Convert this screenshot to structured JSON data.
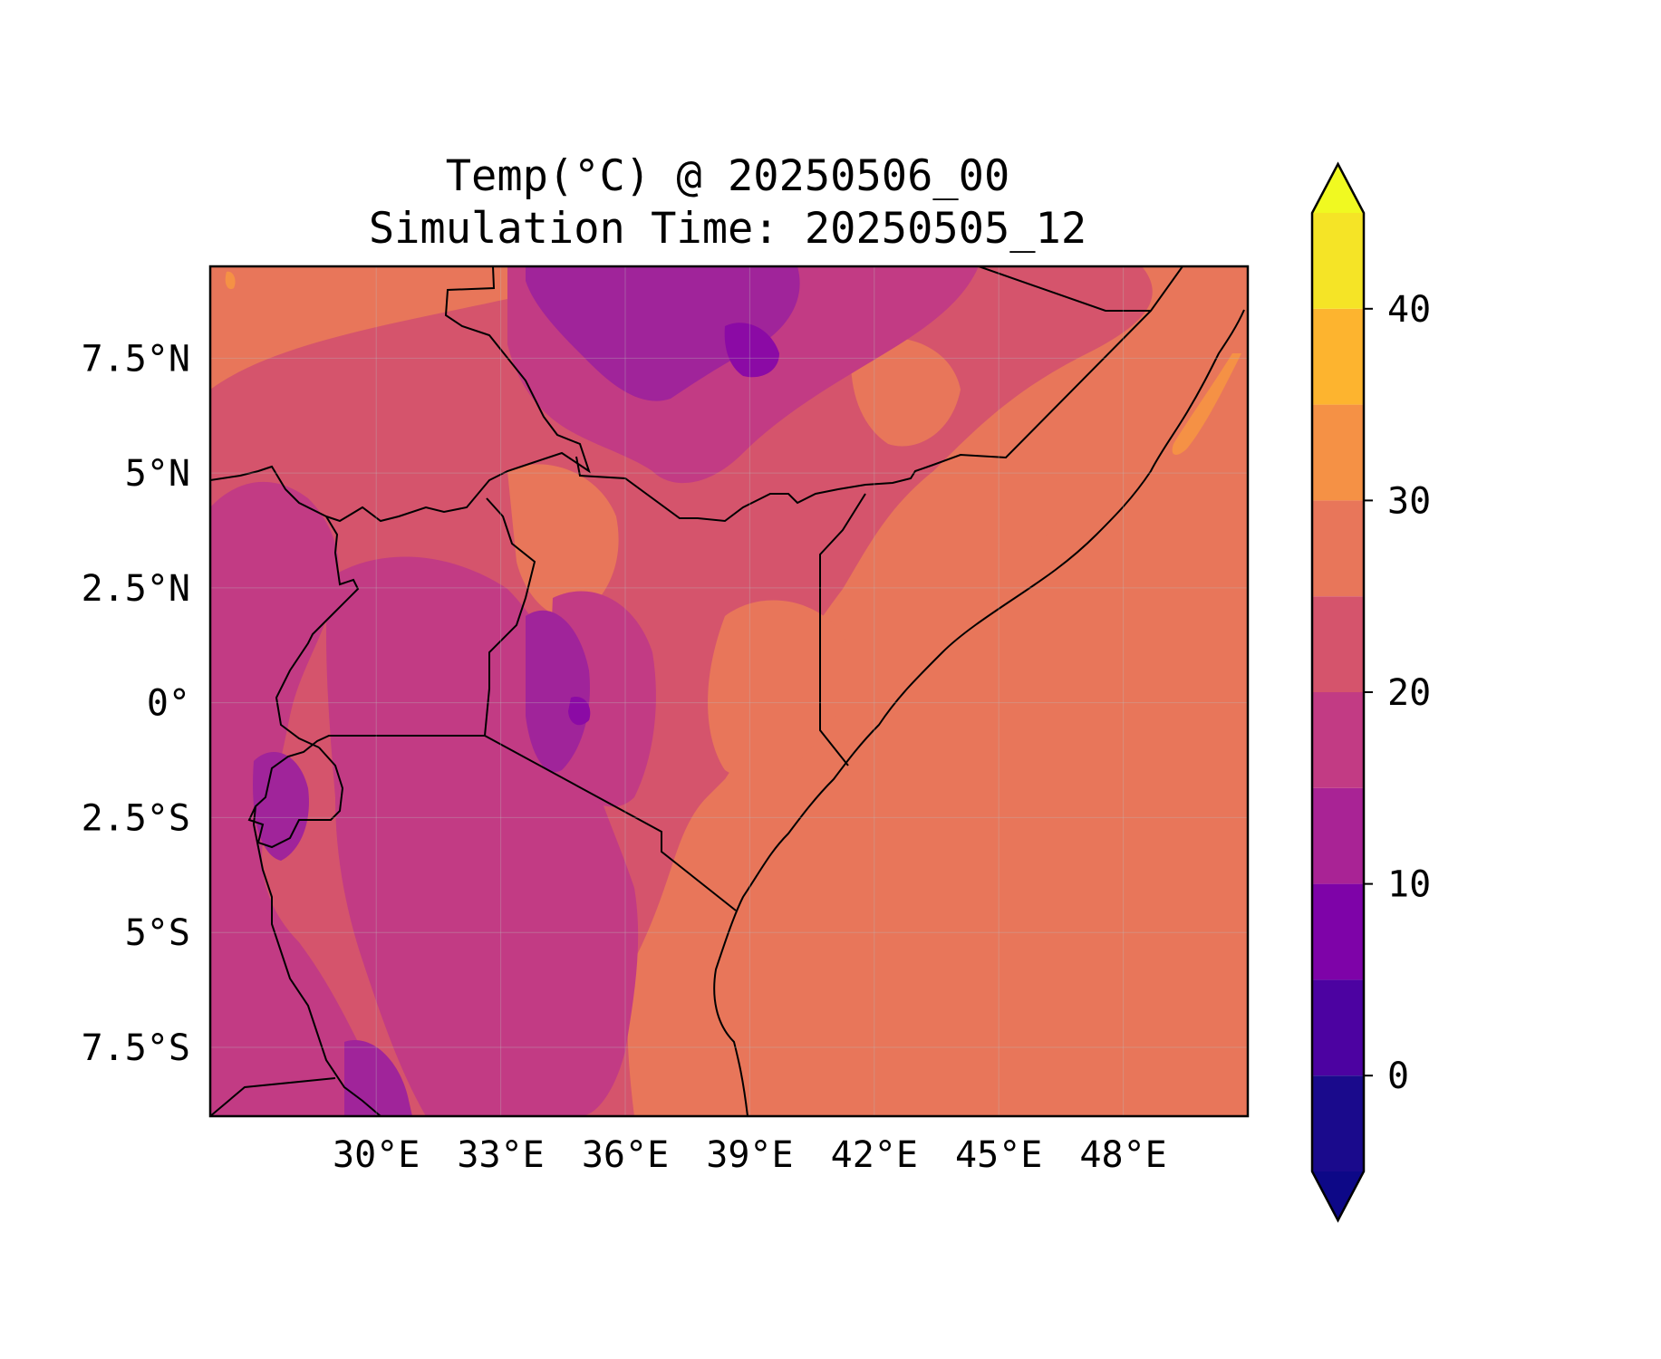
{
  "title": {
    "line1": "Temp(°C) @ 20250506_00",
    "line2": "Simulation Time: 20250505_12"
  },
  "map": {
    "projection": "PlateCarree",
    "lon_range": [
      26.0,
      51.0
    ],
    "lat_range": [
      -9.0,
      9.5
    ],
    "ocean_temperature_band": "25-30",
    "colors": {
      "ocean": "#e8765a",
      "lowland": "#e8765a",
      "plateau": "#d5546c",
      "highland": "#c23b84",
      "high_highland": "#a0249a",
      "peak": "#8b0aa5",
      "warm_coast": "#f59145",
      "borders": "#000000"
    },
    "x_ticks": [
      {
        "value": 30,
        "label": "30°E"
      },
      {
        "value": 33,
        "label": "33°E"
      },
      {
        "value": 36,
        "label": "36°E"
      },
      {
        "value": 39,
        "label": "39°E"
      },
      {
        "value": 42,
        "label": "42°E"
      },
      {
        "value": 45,
        "label": "45°E"
      },
      {
        "value": 48,
        "label": "48°E"
      }
    ],
    "y_ticks": [
      {
        "value": 7.5,
        "label": "7.5°N"
      },
      {
        "value": 5,
        "label": "5°N"
      },
      {
        "value": 2.5,
        "label": "2.5°N"
      },
      {
        "value": 0,
        "label": "0°"
      },
      {
        "value": -2.5,
        "label": "2.5°S"
      },
      {
        "value": -5,
        "label": "5°S"
      },
      {
        "value": -7.5,
        "label": "7.5°S"
      }
    ]
  },
  "colorbar": {
    "colormap": "plasma",
    "extend": "both",
    "range": [
      -5,
      45
    ],
    "levels": [
      -5,
      0,
      5,
      10,
      15,
      20,
      25,
      30,
      35,
      40,
      45
    ],
    "colors": [
      "#1a0a8c",
      "#4c02a1",
      "#7e03a8",
      "#a92395",
      "#c23b84",
      "#d5546c",
      "#e8765a",
      "#f59145",
      "#fdb42f",
      "#f5e426"
    ],
    "under_color": "#0d0887",
    "over_color": "#f0f921",
    "ticks": [
      {
        "value": 0,
        "label": "0"
      },
      {
        "value": 10,
        "label": "10"
      },
      {
        "value": 20,
        "label": "20"
      },
      {
        "value": 30,
        "label": "30"
      },
      {
        "value": 40,
        "label": "40"
      }
    ]
  }
}
